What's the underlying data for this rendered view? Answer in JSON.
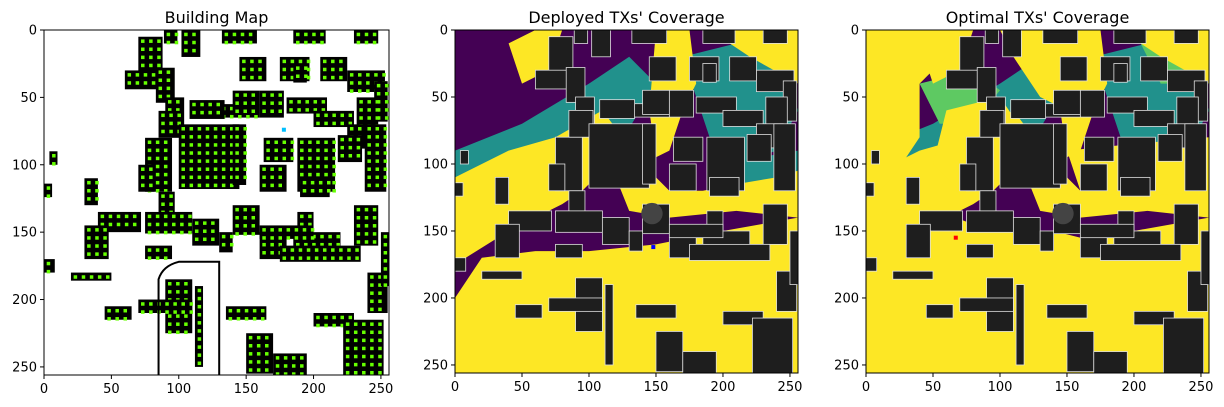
{
  "chart_data": [
    {
      "type": "heatmap",
      "title": "Building Map",
      "xticks": [
        0,
        50,
        100,
        150,
        200,
        250
      ],
      "yticks": [
        0,
        50,
        100,
        150,
        200,
        250
      ],
      "xlim": [
        0,
        256
      ],
      "ylim": [
        256,
        0
      ],
      "colors": {
        "background": "#ffffff",
        "building": "#000000",
        "candidate": "#66ff00",
        "tx": "#00bfff"
      },
      "tx_marker": {
        "x": 178,
        "y": 74
      }
    },
    {
      "type": "heatmap",
      "title": "Deployed TXs' Coverage",
      "xticks": [
        0,
        50,
        100,
        150,
        200,
        250
      ],
      "yticks": [
        0,
        50,
        100,
        150,
        200,
        250
      ],
      "xlim": [
        0,
        256
      ],
      "ylim": [
        256,
        0
      ],
      "colors": {
        "low": "#440154",
        "mid": "#21918c",
        "high": "#fde725",
        "building": "#1e1e1e",
        "outline": "#e0e0e0",
        "tx": "#0000ff"
      },
      "tx_marker": {
        "x": 148,
        "y": 162
      }
    },
    {
      "type": "heatmap",
      "title": "Optimal TXs' Coverage",
      "xticks": [
        0,
        50,
        100,
        150,
        200,
        250
      ],
      "yticks": [
        0,
        50,
        100,
        150,
        200,
        250
      ],
      "xlim": [
        0,
        256
      ],
      "ylim": [
        256,
        0
      ],
      "colors": {
        "low": "#440154",
        "mid": "#21918c",
        "lightmid": "#5ec962",
        "high": "#fde725",
        "building": "#1e1e1e",
        "outline": "#e0e0e0",
        "tx": "#ff0000"
      },
      "tx_marker": {
        "x": 67,
        "y": 155
      }
    }
  ]
}
